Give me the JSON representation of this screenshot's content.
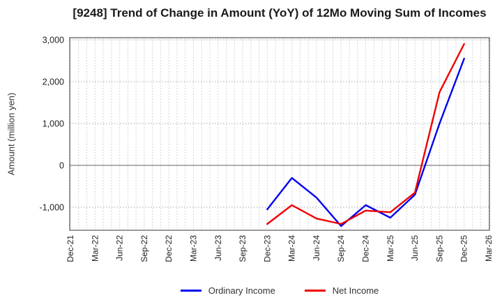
{
  "title": "[9248]  Trend of Change in Amount (YoY) of 12Mo Moving Sum of Incomes",
  "y_axis_label": "Amount (million yen)",
  "colors": {
    "ordinary_income_line": "#0000ee",
    "net_income_line": "#ee0000",
    "grid_minor": "#c9c9c9",
    "grid_major": "#a6a6a6",
    "zero_line": "#808080",
    "frame": "#555555",
    "tick_text": "#222222",
    "title_text": "#1a1a1a",
    "background": "#ffffff"
  },
  "chart_data": {
    "type": "line",
    "title": "[9248]  Trend of Change in Amount (YoY) of 12Mo Moving Sum of Incomes",
    "xlabel": "",
    "ylabel": "Amount (million yen)",
    "categories": [
      "Dec-21",
      "Mar-22",
      "Jun-22",
      "Sep-22",
      "Dec-22",
      "Mar-23",
      "Jun-23",
      "Sep-23",
      "Dec-23",
      "Mar-24",
      "Jun-24",
      "Sep-24",
      "Dec-24",
      "Mar-25",
      "Jun-25",
      "Sep-25",
      "Dec-25",
      "Mar-26"
    ],
    "yticks": [
      -1000,
      0,
      1000,
      2000,
      3000
    ],
    "ylim": [
      -1550,
      3050
    ],
    "grid": true,
    "minor_vertical_grid": "monthly",
    "legend_position": "bottom",
    "series": [
      {
        "name": "Ordinary Income",
        "color": "#0000ee",
        "start_category": "Dec-23",
        "start_index": 8,
        "values": [
          -1050,
          -300,
          -770,
          -1450,
          -950,
          -1250,
          -700,
          1000,
          2550
        ]
      },
      {
        "name": "Net Income",
        "color": "#ee0000",
        "start_category": "Dec-23",
        "start_index": 8,
        "values": [
          -1400,
          -950,
          -1270,
          -1400,
          -1080,
          -1120,
          -650,
          1750,
          2900
        ]
      }
    ]
  }
}
